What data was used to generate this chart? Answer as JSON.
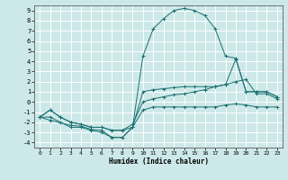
{
  "xlabel": "Humidex (Indice chaleur)",
  "bg_color": "#cde8e8",
  "grid_color": "#ffffff",
  "line_color": "#1a7070",
  "xlim": [
    -0.5,
    23.5
  ],
  "ylim": [
    -4.5,
    9.5
  ],
  "xticks": [
    0,
    1,
    2,
    3,
    4,
    5,
    6,
    7,
    8,
    9,
    10,
    11,
    12,
    13,
    14,
    15,
    16,
    17,
    18,
    19,
    20,
    21,
    22,
    23
  ],
  "yticks": [
    -4,
    -3,
    -2,
    -1,
    0,
    1,
    2,
    3,
    4,
    5,
    6,
    7,
    8,
    9
  ],
  "series": [
    {
      "x": [
        0,
        1,
        2,
        3,
        4,
        5,
        6,
        7,
        8,
        9,
        10,
        11,
        12,
        13,
        14,
        15,
        16,
        17,
        18,
        19,
        20,
        21,
        22,
        23
      ],
      "y": [
        -1.5,
        -0.8,
        -1.5,
        -2.0,
        -2.2,
        -2.5,
        -2.5,
        -2.8,
        -2.8,
        -2.5,
        -0.8,
        -0.5,
        -0.5,
        -0.5,
        -0.5,
        -0.5,
        -0.5,
        -0.5,
        -0.3,
        -0.2,
        -0.3,
        -0.5,
        -0.5,
        -0.5
      ]
    },
    {
      "x": [
        0,
        1,
        2,
        3,
        4,
        5,
        6,
        7,
        8,
        9,
        10,
        11,
        12,
        13,
        14,
        15,
        16,
        17,
        18,
        19,
        20,
        21,
        22,
        23
      ],
      "y": [
        -1.5,
        -0.8,
        -1.5,
        -2.0,
        -2.2,
        -2.5,
        -2.5,
        -2.8,
        -2.8,
        -2.2,
        0.0,
        0.3,
        0.5,
        0.7,
        0.8,
        1.0,
        1.2,
        1.5,
        1.7,
        2.0,
        2.2,
        0.8,
        0.8,
        0.3
      ]
    },
    {
      "x": [
        0,
        1,
        2,
        3,
        4,
        5,
        6,
        7,
        8,
        9,
        10,
        11,
        12,
        13,
        14,
        15,
        16,
        17,
        18,
        19,
        20,
        21,
        22,
        23
      ],
      "y": [
        -1.5,
        -1.5,
        -2.0,
        -2.5,
        -2.5,
        -2.8,
        -3.0,
        -3.5,
        -3.5,
        -2.5,
        1.0,
        1.2,
        1.3,
        1.4,
        1.5,
        1.5,
        1.5,
        1.5,
        1.7,
        4.2,
        1.0,
        1.0,
        1.0,
        0.5
      ]
    },
    {
      "x": [
        0,
        1,
        3,
        4,
        5,
        6,
        7,
        8,
        9,
        10,
        11,
        12,
        13,
        14,
        15,
        16,
        17,
        18,
        19,
        20,
        21,
        22,
        23
      ],
      "y": [
        -1.5,
        -1.8,
        -2.3,
        -2.4,
        -2.7,
        -2.8,
        -3.5,
        -3.5,
        -2.5,
        4.5,
        7.2,
        8.2,
        9.0,
        9.2,
        9.0,
        8.5,
        7.2,
        4.5,
        4.3,
        1.0,
        1.0,
        1.0,
        0.5
      ]
    }
  ]
}
